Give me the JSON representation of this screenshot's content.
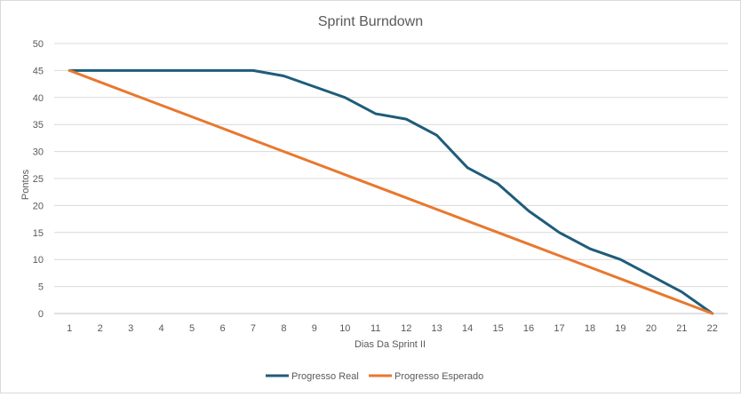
{
  "chart_data": {
    "type": "line",
    "title": "Sprint Burndown",
    "xlabel": "Dias Da Sprint II",
    "ylabel": "Pontos",
    "x": [
      1,
      2,
      3,
      4,
      5,
      6,
      7,
      8,
      9,
      10,
      11,
      12,
      13,
      14,
      15,
      16,
      17,
      18,
      19,
      20,
      21,
      22
    ],
    "ylim": [
      0,
      50
    ],
    "yticks": [
      0,
      5,
      10,
      15,
      20,
      25,
      30,
      35,
      40,
      45,
      50
    ],
    "grid": true,
    "legend_position": "bottom",
    "series": [
      {
        "name": "Progresso Real",
        "color": "#1f5c7a",
        "values": [
          45,
          45,
          45,
          45,
          45,
          45,
          45,
          44,
          42,
          40,
          37,
          36,
          33,
          27,
          24,
          19,
          15,
          12,
          10,
          7,
          4,
          0
        ]
      },
      {
        "name": "Progresso Esperado",
        "color": "#e8782f",
        "values": [
          45,
          42.86,
          40.71,
          38.57,
          36.43,
          34.29,
          32.14,
          30,
          27.86,
          25.71,
          23.57,
          21.43,
          19.29,
          17.14,
          15,
          12.86,
          10.71,
          8.57,
          6.43,
          4.29,
          2.14,
          0
        ]
      }
    ]
  }
}
